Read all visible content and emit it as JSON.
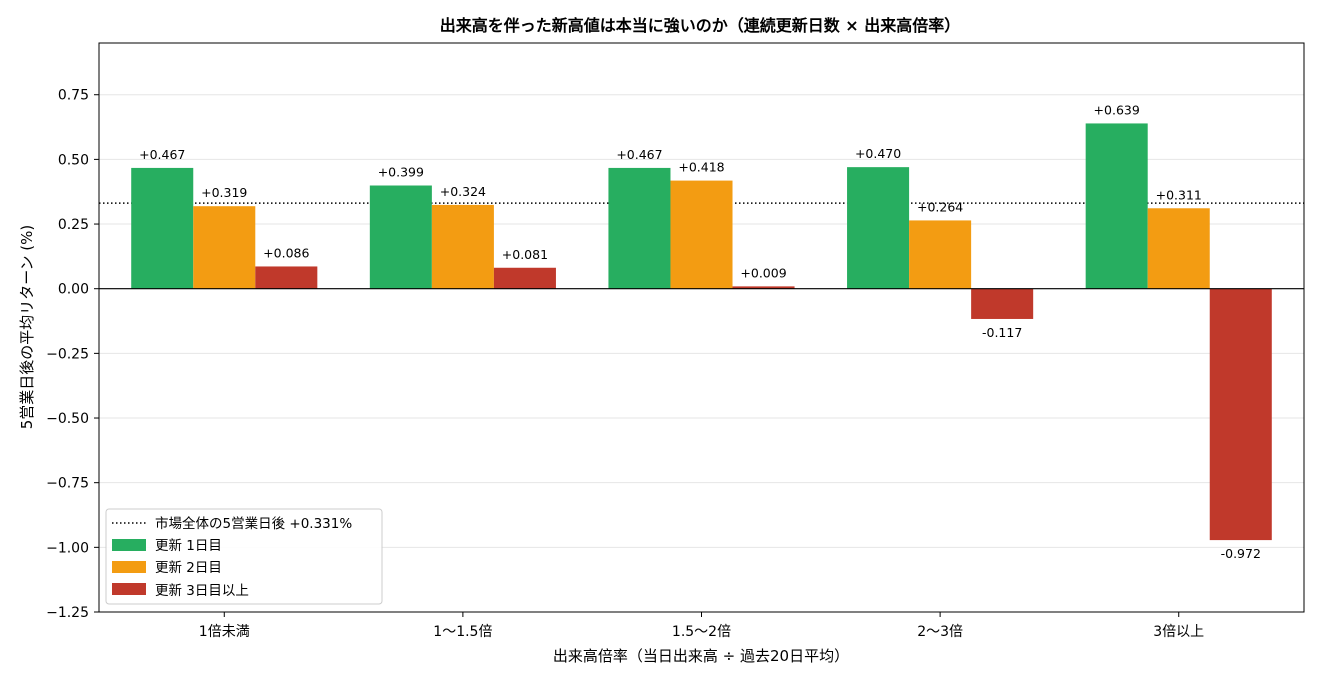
{
  "chart_data": {
    "type": "bar",
    "title": "出来高を伴った新高値は本当に強いのか（連続更新日数 × 出来高倍率）",
    "xlabel": "出来高倍率（当日出来高 ÷ 過去20日平均）",
    "ylabel": "5営業日後の平均リターン (%)",
    "categories": [
      "1倍未満",
      "1〜1.5倍",
      "1.5〜2倍",
      "2〜3倍",
      "3倍以上"
    ],
    "series": [
      {
        "name": "更新 1日目",
        "color": "#27ae60",
        "values": [
          0.467,
          0.399,
          0.467,
          0.47,
          0.639
        ],
        "labels": [
          "+0.467",
          "+0.399",
          "+0.467",
          "+0.470",
          "+0.639"
        ]
      },
      {
        "name": "更新 2日目",
        "color": "#f39c12",
        "values": [
          0.319,
          0.324,
          0.418,
          0.264,
          0.311
        ],
        "labels": [
          "+0.319",
          "+0.324",
          "+0.418",
          "+0.264",
          "+0.311"
        ]
      },
      {
        "name": "更新 3日目以上",
        "color": "#c0392b",
        "values": [
          0.086,
          0.081,
          0.009,
          -0.117,
          -0.972
        ],
        "labels": [
          "+0.086",
          "+0.081",
          "+0.009",
          "-0.117",
          "-0.972"
        ]
      }
    ],
    "reference_line": {
      "label": "市場全体の5営業日後 +0.331%",
      "value": 0.331
    },
    "ylim": [
      -1.25,
      0.95
    ],
    "yticks": [
      0.75,
      0.5,
      0.25,
      0.0,
      -0.25,
      -0.5,
      -0.75,
      -1.0,
      -1.25
    ],
    "ytick_labels": [
      "0.75",
      "0.50",
      "0.25",
      "0.00",
      "−0.25",
      "−0.50",
      "−0.75",
      "−1.00",
      "−1.25"
    ],
    "grid": "horizontal",
    "legend_position": "lower-left"
  }
}
